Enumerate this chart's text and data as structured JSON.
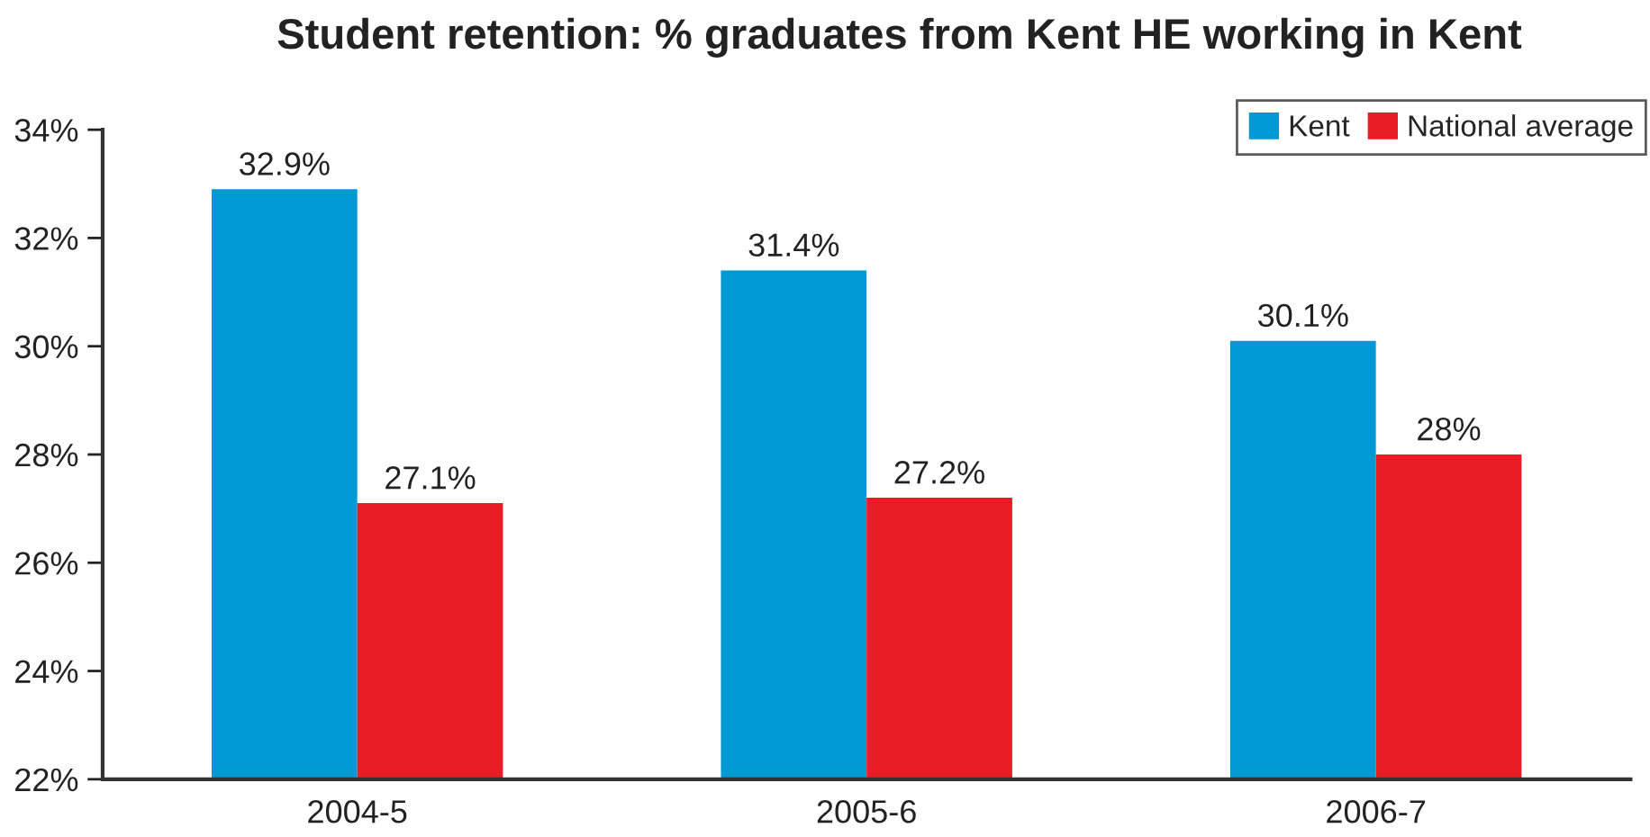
{
  "chart_data": {
    "type": "bar",
    "title": "Student retention: % graduates from Kent HE working in Kent",
    "categories": [
      "2004-5",
      "2005-6",
      "2006-7"
    ],
    "series": [
      {
        "name": "Kent",
        "color": "#0099d4",
        "values": [
          32.9,
          31.4,
          30.1
        ],
        "value_labels": [
          "32.9%",
          "31.4%",
          "30.1%"
        ]
      },
      {
        "name": "National average",
        "color": "#e81c24",
        "values": [
          27.1,
          27.2,
          28
        ],
        "value_labels": [
          "27.1%",
          "27.2%",
          "28%"
        ]
      }
    ],
    "ylim": [
      22,
      34
    ],
    "yticks": [
      {
        "value": 22,
        "label": "22%"
      },
      {
        "value": 24,
        "label": "24%"
      },
      {
        "value": 26,
        "label": "26%"
      },
      {
        "value": 28,
        "label": "28%"
      },
      {
        "value": 30,
        "label": "30%"
      },
      {
        "value": 32,
        "label": "32%"
      },
      {
        "value": 34,
        "label": "34%"
      }
    ],
    "legend": "top right"
  }
}
